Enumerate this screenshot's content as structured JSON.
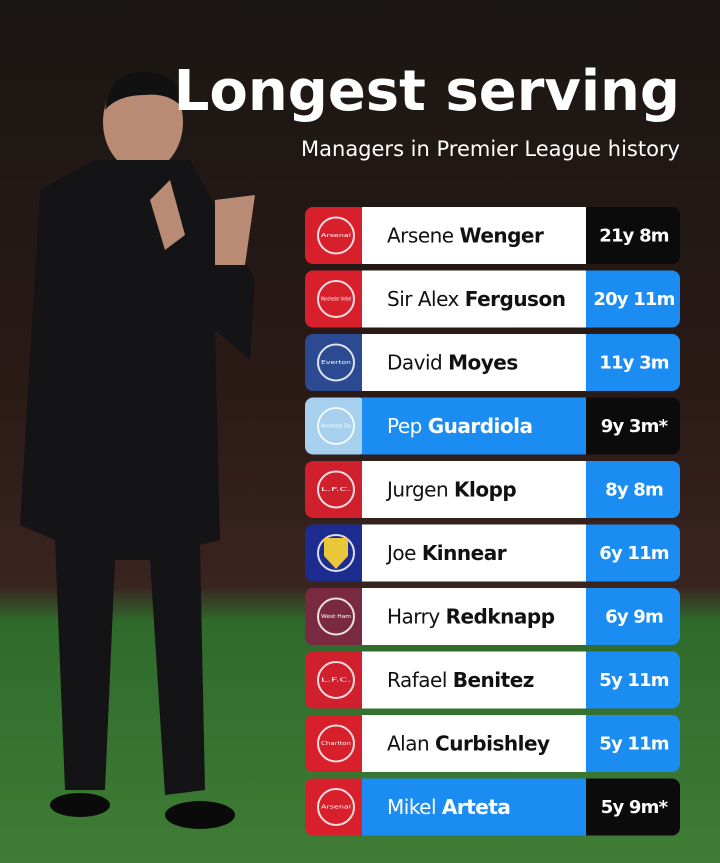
{
  "header": {
    "title": "Longest serving",
    "subtitle": "Managers in Premier League history"
  },
  "table": {
    "rows": [
      {
        "first": "Arsene",
        "last": "Wenger",
        "tenure": "21y 8m",
        "badge": "Arsenal",
        "badge_color": "#d8202d",
        "name_bg": "#ffffff",
        "name_color": "#111111",
        "tenure_bg": "#0b0b0b"
      },
      {
        "first": "Sir Alex",
        "last": "Ferguson",
        "tenure": "20y 11m",
        "badge": "Manchester United",
        "badge_color": "#d8202d",
        "name_bg": "#ffffff",
        "name_color": "#111111",
        "tenure_bg": "#1b8cf2"
      },
      {
        "first": "David",
        "last": "Moyes",
        "tenure": "11y 3m",
        "badge": "Everton",
        "badge_color": "#2b4a92",
        "name_bg": "#ffffff",
        "name_color": "#111111",
        "tenure_bg": "#1b8cf2"
      },
      {
        "first": "Pep",
        "last": "Guardiola",
        "tenure": "9y 3m*",
        "badge": "Manchester City",
        "badge_color": "#a6d0ee",
        "name_bg": "#1b8cf2",
        "name_color": "#ffffff",
        "tenure_bg": "#0b0b0b"
      },
      {
        "first": "Jurgen",
        "last": "Klopp",
        "tenure": "8y 8m",
        "badge": "L.F.C.",
        "badge_color": "#d0202e",
        "name_bg": "#ffffff",
        "name_color": "#111111",
        "tenure_bg": "#1b8cf2"
      },
      {
        "first": "Joe",
        "last": "Kinnear",
        "tenure": "6y 11m",
        "badge_color": "#1d2c8f",
        "name_bg": "#ffffff",
        "name_color": "#111111",
        "tenure_bg": "#1b8cf2"
      },
      {
        "first": "Harry",
        "last": "Redknapp",
        "tenure": "6y 9m",
        "badge": "West Ham",
        "badge_color": "#7a2a40",
        "name_bg": "#ffffff",
        "name_color": "#111111",
        "tenure_bg": "#1b8cf2"
      },
      {
        "first": "Rafael",
        "last": "Benitez",
        "tenure": "5y 11m",
        "badge": "L.F.C.",
        "badge_color": "#d0202e",
        "name_bg": "#ffffff",
        "name_color": "#111111",
        "tenure_bg": "#1b8cf2"
      },
      {
        "first": "Alan",
        "last": "Curbishley",
        "tenure": "5y 11m",
        "badge": "Charlton",
        "badge_color": "#d8202d",
        "name_bg": "#ffffff",
        "name_color": "#111111",
        "tenure_bg": "#1b8cf2"
      },
      {
        "first": "Mikel",
        "last": "Arteta",
        "tenure": "5y 9m*",
        "badge": "Arsenal",
        "badge_color": "#d8202d",
        "name_bg": "#1b8cf2",
        "name_color": "#ffffff",
        "tenure_bg": "#0b0b0b"
      }
    ]
  }
}
